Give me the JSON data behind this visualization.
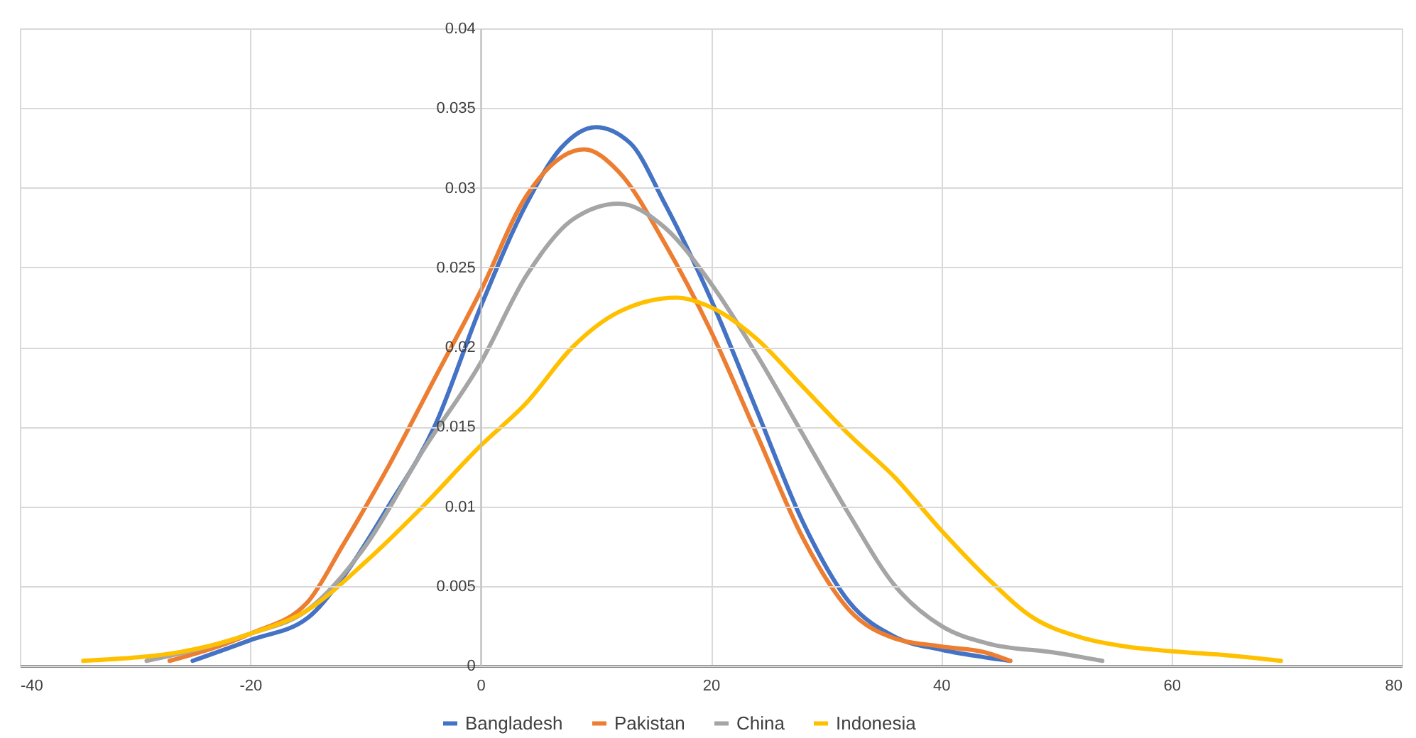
{
  "chart_data": {
    "type": "line",
    "xlim": [
      -40,
      80
    ],
    "xticks": [
      -40,
      -20,
      0,
      20,
      40,
      60,
      80
    ],
    "ylim": [
      0,
      0.04
    ],
    "yticks": [
      0,
      0.005,
      0.01,
      0.015,
      0.02,
      0.025,
      0.03,
      0.035,
      0.04
    ],
    "grid": true,
    "legend": "bottom",
    "marker": "none",
    "line_style": "solid",
    "series": [
      {
        "name": "Bangladesh",
        "color": "#4472c4",
        "x": [
          -25,
          -20,
          -15,
          -12,
          -8,
          -4,
          0,
          4,
          7,
          10,
          13,
          16,
          20,
          24,
          28,
          32,
          36,
          40,
          44,
          46
        ],
        "values": [
          0.0003,
          0.0016,
          0.003,
          0.0055,
          0.01,
          0.015,
          0.0225,
          0.029,
          0.0325,
          0.0338,
          0.0328,
          0.029,
          0.023,
          0.016,
          0.009,
          0.004,
          0.0018,
          0.001,
          0.0005,
          0.0003
        ]
      },
      {
        "name": "Pakistan",
        "color": "#ed7d31",
        "x": [
          -27,
          -20,
          -15,
          -12,
          -8,
          -4,
          0,
          4,
          9,
          12,
          16,
          20,
          24,
          28,
          32,
          36,
          40,
          44,
          46
        ],
        "values": [
          0.0003,
          0.002,
          0.004,
          0.0075,
          0.0125,
          0.018,
          0.0235,
          0.0295,
          0.0324,
          0.031,
          0.0265,
          0.021,
          0.0145,
          0.008,
          0.0035,
          0.0017,
          0.0012,
          0.0008,
          0.0003
        ]
      },
      {
        "name": "China",
        "color": "#a5a5a5",
        "x": [
          -29,
          -20,
          -15,
          -10,
          -5,
          0,
          4,
          8,
          12,
          16,
          20,
          24,
          28,
          32,
          36,
          40,
          44,
          50,
          54
        ],
        "values": [
          0.0003,
          0.002,
          0.0035,
          0.0075,
          0.0135,
          0.019,
          0.0245,
          0.028,
          0.029,
          0.0275,
          0.024,
          0.0195,
          0.0145,
          0.0095,
          0.005,
          0.0025,
          0.0014,
          0.0008,
          0.0003
        ]
      },
      {
        "name": "Indonesia",
        "color": "#ffc000",
        "x": [
          -34.5,
          -25,
          -20,
          -15,
          -10,
          -5,
          0,
          4,
          8,
          12,
          17,
          20,
          24,
          28,
          32,
          36,
          40,
          44,
          48,
          52,
          56,
          60,
          64,
          69.5
        ],
        "values": [
          0.0003,
          0.001,
          0.002,
          0.0035,
          0.0065,
          0.01,
          0.0138,
          0.0165,
          0.02,
          0.0222,
          0.0231,
          0.0225,
          0.0205,
          0.0175,
          0.0145,
          0.0118,
          0.0085,
          0.0055,
          0.003,
          0.0018,
          0.0012,
          0.0009,
          0.0007,
          0.0003
        ]
      }
    ]
  }
}
